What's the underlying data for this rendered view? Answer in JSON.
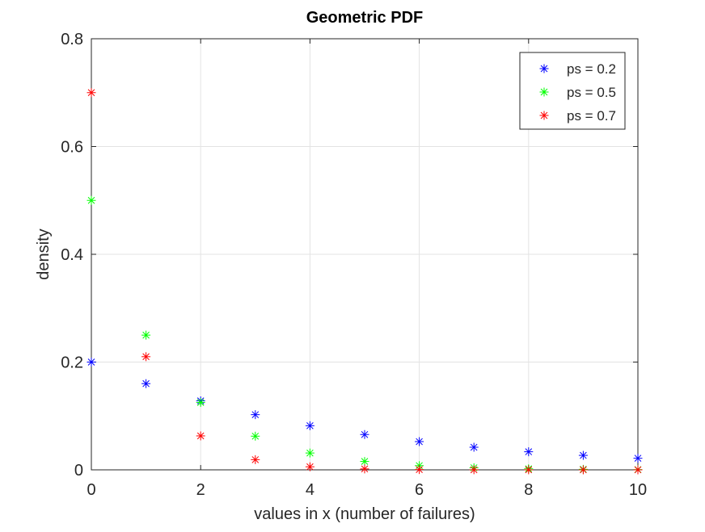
{
  "chart_data": {
    "type": "scatter",
    "title": "Geometric PDF",
    "xlabel": "values in x (number of failures)",
    "ylabel": "density",
    "xlim": [
      0,
      10
    ],
    "ylim": [
      0,
      0.8
    ],
    "xticks": [
      0,
      2,
      4,
      6,
      8,
      10
    ],
    "yticks": [
      0,
      0.2,
      0.4,
      0.6,
      0.8
    ],
    "xtick_labels": [
      "0",
      "2",
      "4",
      "6",
      "8",
      "10"
    ],
    "ytick_labels": [
      "0",
      "0.2",
      "0.4",
      "0.6",
      "0.8"
    ],
    "grid": true,
    "legend_position": "top-right",
    "marker": "asterisk",
    "x": [
      0,
      1,
      2,
      3,
      4,
      5,
      6,
      7,
      8,
      9,
      10
    ],
    "series": [
      {
        "name": "ps = 0.2",
        "color": "#0000ff",
        "values": [
          0.2,
          0.16,
          0.128,
          0.1024,
          0.08192,
          0.065536,
          0.0524288,
          0.041943,
          0.0335544,
          0.0268435,
          0.0214748
        ]
      },
      {
        "name": "ps = 0.5",
        "color": "#00ff00",
        "values": [
          0.5,
          0.25,
          0.125,
          0.0625,
          0.03125,
          0.015625,
          0.0078125,
          0.00390625,
          0.00195313,
          0.00097656,
          0.00048828
        ]
      },
      {
        "name": "ps = 0.7",
        "color": "#ff0000",
        "values": [
          0.7,
          0.21,
          0.063,
          0.0189,
          0.00567,
          0.001701,
          0.0005103,
          0.00015309,
          4.59e-05,
          1.38e-05,
          4.1e-06
        ]
      }
    ]
  }
}
